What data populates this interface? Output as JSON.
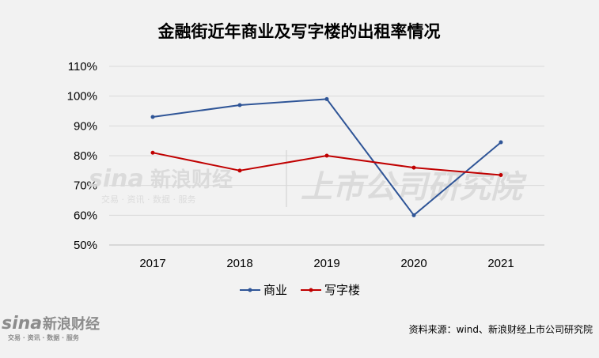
{
  "chart_data": {
    "type": "line",
    "title": "金融街近年商业及写字楼的出租率情况",
    "categories": [
      "2017",
      "2018",
      "2019",
      "2020",
      "2021"
    ],
    "y_ticks": [
      "50%",
      "60%",
      "70%",
      "80%",
      "90%",
      "100%",
      "110%"
    ],
    "ylim": [
      50,
      110
    ],
    "grid": true,
    "legend_position": "bottom",
    "series": [
      {
        "name": "商业",
        "color": "#2f5597",
        "values": [
          93,
          97,
          99,
          60,
          84.5
        ]
      },
      {
        "name": "写字楼",
        "color": "#c00000",
        "values": [
          81,
          75,
          80,
          76,
          73.5
        ]
      }
    ],
    "source": "资料来源：wind、新浪财经上市公司研究院"
  },
  "watermark": {
    "brand": "sina",
    "brand_cn": "新浪财经",
    "brand_tagline": "交易 · 资讯 · 数据 · 服务",
    "institute": "上市公司研究院"
  }
}
